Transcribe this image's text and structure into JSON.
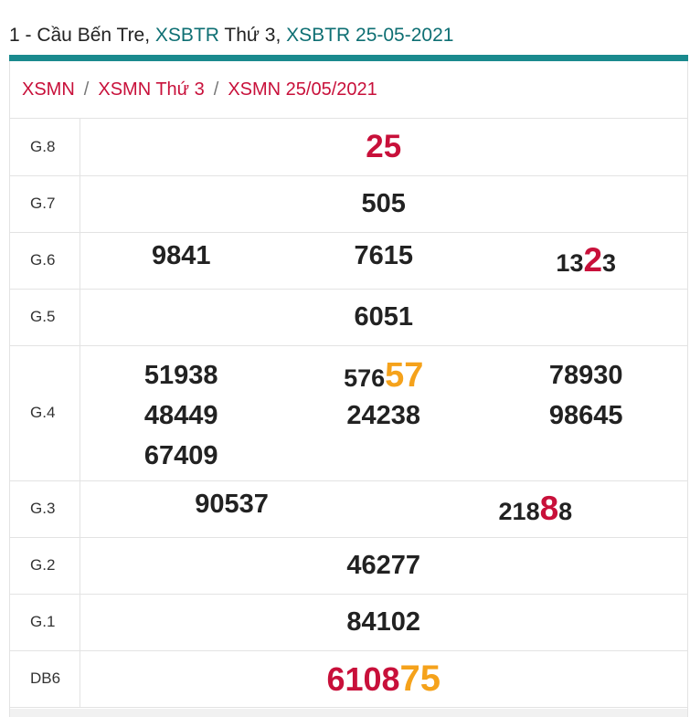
{
  "heading": {
    "prefix": "1 - Cầu Bến Tre,",
    "link1": "XSBTR",
    "middle": "Thứ 3,",
    "link2": "XSBTR 25-05-2021"
  },
  "breadcrumb": [
    "XSMN",
    "XSMN Thứ 3",
    "XSMN 25/05/2021"
  ],
  "breadcrumb_sep": "/",
  "rows": {
    "g8": {
      "label": "G.8",
      "value": "25"
    },
    "g7": {
      "label": "G.7",
      "value": "505"
    },
    "g6": {
      "label": "G.6",
      "values": [
        "9841",
        "7615"
      ],
      "hl": {
        "pre": "13",
        "mark": "2",
        "post": "3"
      }
    },
    "g5": {
      "label": "G.5",
      "value": "6051"
    },
    "g4": {
      "label": "G.4",
      "col1": [
        "51938",
        "48449",
        "67409"
      ],
      "col2_first": {
        "pre": "576",
        "mark": "57"
      },
      "col2": [
        "24238"
      ],
      "col3": [
        "78930",
        "98645"
      ]
    },
    "g3": {
      "label": "G.3",
      "value1": "90537",
      "hl": {
        "pre": "218",
        "mark": "8",
        "post": "8"
      }
    },
    "g2": {
      "label": "G.2",
      "value": "46277"
    },
    "g1": {
      "label": "G.1",
      "value": "84102"
    },
    "db": {
      "label": "DB6",
      "pre": "6108",
      "mark": "75"
    }
  },
  "colors": {
    "accent": "#1a8a8e",
    "link": "#0e6f73",
    "red": "#c8103a",
    "orange": "#f5a21b"
  }
}
